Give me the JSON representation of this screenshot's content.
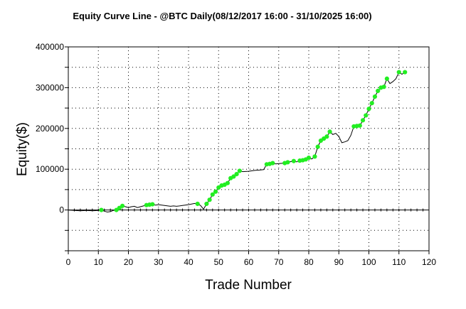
{
  "chart_data": {
    "type": "line",
    "title": "Equity Curve Line - @BTC Daily(08/12/2017 16:00 - 31/10/2025 16:00)",
    "xlabel": "Trade Number",
    "ylabel": "Equity($)",
    "xlim": [
      0,
      120
    ],
    "ylim": [
      -100000,
      400000
    ],
    "xticks": [
      "0",
      "10",
      "20",
      "30",
      "40",
      "50",
      "60",
      "70",
      "80",
      "90",
      "100",
      "110",
      "120"
    ],
    "yticks": [
      "400000",
      "300000",
      "200000",
      "100000",
      "0"
    ],
    "grid": true,
    "colors": {
      "line": "#000000",
      "marker": "#22ee22",
      "zero_line": "#000000",
      "frame": "#000000"
    },
    "series": [
      {
        "points": [
          {
            "x": 0,
            "y": 0
          },
          {
            "x": 2,
            "y": -1000
          },
          {
            "x": 4,
            "y": -2000
          },
          {
            "x": 6,
            "y": -1000
          },
          {
            "x": 8,
            "y": -2000
          },
          {
            "x": 10,
            "y": -1000
          },
          {
            "x": 11,
            "y": 0,
            "hl": true
          },
          {
            "x": 12,
            "y": -3000
          },
          {
            "x": 13,
            "y": -5000
          },
          {
            "x": 14,
            "y": -4000
          },
          {
            "x": 15,
            "y": -1000
          },
          {
            "x": 16,
            "y": 0,
            "hl": true
          },
          {
            "x": 17,
            "y": 5000,
            "hl": true
          },
          {
            "x": 18,
            "y": 10000,
            "hl": true
          },
          {
            "x": 19,
            "y": 8000
          },
          {
            "x": 20,
            "y": 6000
          },
          {
            "x": 21,
            "y": 8000
          },
          {
            "x": 22,
            "y": 9000
          },
          {
            "x": 23,
            "y": 6000
          },
          {
            "x": 24,
            "y": 8000
          },
          {
            "x": 25,
            "y": 10000
          },
          {
            "x": 26,
            "y": 12000,
            "hl": true
          },
          {
            "x": 27,
            "y": 13000,
            "hl": true
          },
          {
            "x": 28,
            "y": 14000,
            "hl": true
          },
          {
            "x": 29,
            "y": 12000
          },
          {
            "x": 30,
            "y": 13000
          },
          {
            "x": 32,
            "y": 11000
          },
          {
            "x": 34,
            "y": 9000
          },
          {
            "x": 35,
            "y": 10000
          },
          {
            "x": 36,
            "y": 9000
          },
          {
            "x": 37,
            "y": 10000
          },
          {
            "x": 38,
            "y": 11000
          },
          {
            "x": 40,
            "y": 13000
          },
          {
            "x": 42,
            "y": 16000
          },
          {
            "x": 43,
            "y": 15000,
            "hl": true
          },
          {
            "x": 44,
            "y": 11000
          },
          {
            "x": 45,
            "y": 2000
          },
          {
            "x": 46,
            "y": 15000,
            "hl": true
          },
          {
            "x": 47,
            "y": 25000,
            "hl": true
          },
          {
            "x": 48,
            "y": 38000,
            "hl": true
          },
          {
            "x": 49,
            "y": 45000,
            "hl": true
          },
          {
            "x": 50,
            "y": 55000,
            "hl": true
          },
          {
            "x": 51,
            "y": 60000,
            "hl": true
          },
          {
            "x": 52,
            "y": 62000,
            "hl": true
          },
          {
            "x": 53,
            "y": 66000,
            "hl": true
          },
          {
            "x": 54,
            "y": 78000,
            "hl": true
          },
          {
            "x": 55,
            "y": 82000,
            "hl": true
          },
          {
            "x": 56,
            "y": 88000,
            "hl": true
          },
          {
            "x": 57,
            "y": 96000,
            "hl": true
          },
          {
            "x": 58,
            "y": 94000
          },
          {
            "x": 60,
            "y": 95000
          },
          {
            "x": 62,
            "y": 97000
          },
          {
            "x": 64,
            "y": 98000
          },
          {
            "x": 65,
            "y": 99000
          },
          {
            "x": 66,
            "y": 112000,
            "hl": true
          },
          {
            "x": 67,
            "y": 113000,
            "hl": true
          },
          {
            "x": 68,
            "y": 115000,
            "hl": true
          },
          {
            "x": 69,
            "y": 113000
          },
          {
            "x": 70,
            "y": 114000
          },
          {
            "x": 72,
            "y": 115000,
            "hl": true
          },
          {
            "x": 73,
            "y": 117000,
            "hl": true
          },
          {
            "x": 75,
            "y": 120000,
            "hl": true
          },
          {
            "x": 76,
            "y": 118000
          },
          {
            "x": 77,
            "y": 121000,
            "hl": true
          },
          {
            "x": 78,
            "y": 122000,
            "hl": true
          },
          {
            "x": 79,
            "y": 124000,
            "hl": true
          },
          {
            "x": 80,
            "y": 128000,
            "hl": true
          },
          {
            "x": 81,
            "y": 125000
          },
          {
            "x": 82,
            "y": 131000,
            "hl": true
          },
          {
            "x": 83,
            "y": 155000,
            "hl": true
          },
          {
            "x": 84,
            "y": 170000,
            "hl": true
          },
          {
            "x": 85,
            "y": 175000,
            "hl": true
          },
          {
            "x": 86,
            "y": 180000,
            "hl": true
          },
          {
            "x": 87,
            "y": 192000,
            "hl": true
          },
          {
            "x": 88,
            "y": 185000
          },
          {
            "x": 89,
            "y": 188000
          },
          {
            "x": 90,
            "y": 180000
          },
          {
            "x": 91,
            "y": 165000
          },
          {
            "x": 92,
            "y": 167000
          },
          {
            "x": 93,
            "y": 170000
          },
          {
            "x": 94,
            "y": 183000
          },
          {
            "x": 95,
            "y": 205000,
            "hl": true
          },
          {
            "x": 96,
            "y": 206000,
            "hl": true
          },
          {
            "x": 97,
            "y": 207000,
            "hl": true
          },
          {
            "x": 98,
            "y": 220000,
            "hl": true
          },
          {
            "x": 99,
            "y": 232000,
            "hl": true
          },
          {
            "x": 100,
            "y": 248000,
            "hl": true
          },
          {
            "x": 101,
            "y": 262000,
            "hl": true
          },
          {
            "x": 102,
            "y": 278000,
            "hl": true
          },
          {
            "x": 103,
            "y": 292000,
            "hl": true
          },
          {
            "x": 104,
            "y": 300000,
            "hl": true
          },
          {
            "x": 105,
            "y": 302000,
            "hl": true
          },
          {
            "x": 106,
            "y": 322000,
            "hl": true
          },
          {
            "x": 107,
            "y": 310000
          },
          {
            "x": 108,
            "y": 315000
          },
          {
            "x": 109,
            "y": 322000
          },
          {
            "x": 110,
            "y": 338000,
            "hl": true
          },
          {
            "x": 111,
            "y": 333000
          },
          {
            "x": 112,
            "y": 338000,
            "hl": true
          }
        ]
      }
    ]
  }
}
